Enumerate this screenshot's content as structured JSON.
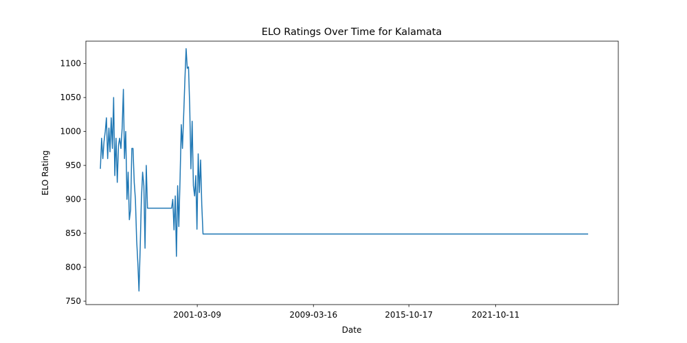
{
  "chart_data": {
    "type": "line",
    "title": "ELO Ratings Over Time for Kalamata",
    "xlabel": "Date",
    "ylabel": "ELO Rating",
    "x_ticks": [
      "2001-03-09",
      "2009-03-16",
      "2015-10-17",
      "2021-10-11"
    ],
    "y_ticks": [
      750,
      800,
      850,
      900,
      950,
      1000,
      1050,
      1100
    ],
    "ylim": [
      745,
      1133
    ],
    "xlim": [
      "1993-07-01",
      "2030-04-01"
    ],
    "grid": false,
    "color": "#1f77b4",
    "series": [
      {
        "points": [
          [
            "1994-07-01",
            945
          ],
          [
            "1994-08-01",
            990
          ],
          [
            "1994-09-01",
            960
          ],
          [
            "1994-10-01",
            985
          ],
          [
            "1994-11-01",
            1000
          ],
          [
            "1994-12-01",
            1020
          ],
          [
            "1995-01-01",
            960
          ],
          [
            "1995-02-01",
            1005
          ],
          [
            "1995-03-01",
            970
          ],
          [
            "1995-04-01",
            1020
          ],
          [
            "1995-05-01",
            975
          ],
          [
            "1995-06-01",
            1050
          ],
          [
            "1995-07-01",
            935
          ],
          [
            "1995-08-01",
            990
          ],
          [
            "1995-09-01",
            925
          ],
          [
            "1995-10-01",
            980
          ],
          [
            "1995-11-01",
            990
          ],
          [
            "1995-12-01",
            975
          ],
          [
            "1996-01-01",
            1005
          ],
          [
            "1996-02-01",
            1062
          ],
          [
            "1996-03-01",
            960
          ],
          [
            "1996-04-01",
            1000
          ],
          [
            "1996-05-01",
            900
          ],
          [
            "1996-06-01",
            940
          ],
          [
            "1996-07-01",
            870
          ],
          [
            "1996-08-01",
            885
          ],
          [
            "1996-09-01",
            975
          ],
          [
            "1996-10-01",
            975
          ],
          [
            "1996-11-01",
            925
          ],
          [
            "1996-12-01",
            900
          ],
          [
            "1997-01-01",
            840
          ],
          [
            "1997-02-01",
            805
          ],
          [
            "1997-03-01",
            765
          ],
          [
            "1997-04-01",
            830
          ],
          [
            "1997-05-01",
            900
          ],
          [
            "1997-06-01",
            940
          ],
          [
            "1997-07-01",
            920
          ],
          [
            "1997-08-01",
            828
          ],
          [
            "1997-09-01",
            950
          ],
          [
            "1997-10-01",
            887
          ],
          [
            "1998-06-01",
            887
          ],
          [
            "1999-06-01",
            887
          ],
          [
            "1999-07-01",
            900
          ],
          [
            "1999-08-01",
            855
          ],
          [
            "1999-09-01",
            905
          ],
          [
            "1999-10-01",
            816
          ],
          [
            "1999-11-01",
            920
          ],
          [
            "1999-12-01",
            860
          ],
          [
            "2000-01-01",
            930
          ],
          [
            "2000-02-01",
            1010
          ],
          [
            "2000-03-01",
            975
          ],
          [
            "2000-04-01",
            1025
          ],
          [
            "2000-05-01",
            1075
          ],
          [
            "2000-06-01",
            1122
          ],
          [
            "2000-07-01",
            1093
          ],
          [
            "2000-08-01",
            1095
          ],
          [
            "2000-09-01",
            1035
          ],
          [
            "2000-10-01",
            945
          ],
          [
            "2000-11-01",
            1015
          ],
          [
            "2000-12-01",
            920
          ],
          [
            "2001-01-01",
            905
          ],
          [
            "2001-02-01",
            935
          ],
          [
            "2001-03-01",
            856
          ],
          [
            "2001-04-01",
            967
          ],
          [
            "2001-05-01",
            910
          ],
          [
            "2001-06-01",
            958
          ],
          [
            "2001-07-01",
            892
          ],
          [
            "2001-08-01",
            849
          ],
          [
            "2028-03-01",
            849
          ]
        ]
      }
    ]
  }
}
